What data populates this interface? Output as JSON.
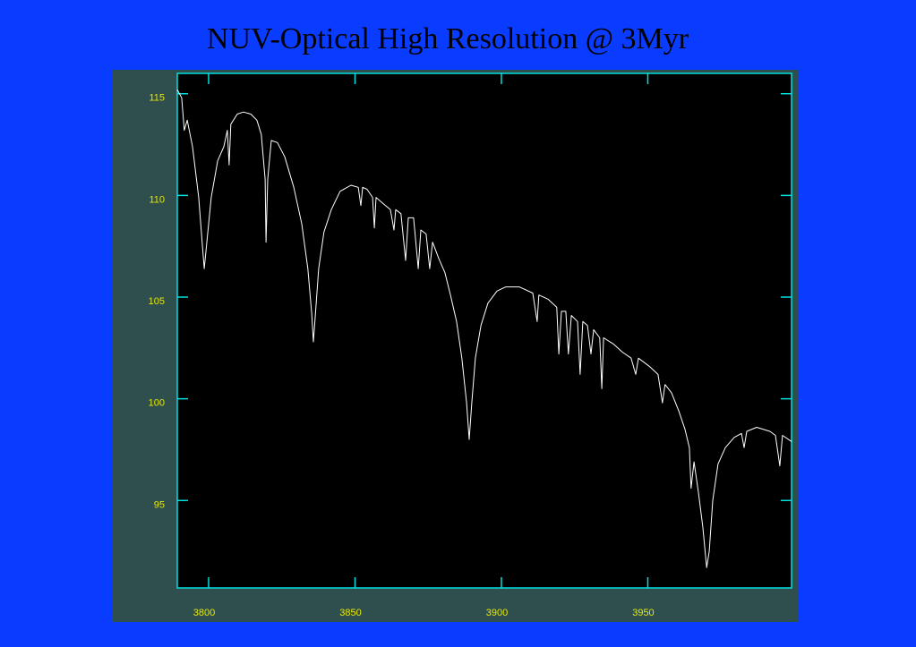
{
  "chart_data": {
    "type": "line",
    "title": "NUV-Optical High Resolution @ 3Myr",
    "x": [
      3789.3,
      3790.8,
      3791.7,
      3792.7,
      3794.5,
      3796.6,
      3797.9,
      3798.5,
      3799.4,
      3800.9,
      3803.1,
      3805.2,
      3806.4,
      3807.0,
      3807.6,
      3809.8,
      3811.9,
      3814.4,
      3816.5,
      3818.0,
      3819.3,
      3819.6,
      3820.2,
      3821.4,
      3823.5,
      3826.0,
      3829.1,
      3831.8,
      3833.9,
      3835.2,
      3835.8,
      3836.4,
      3837.6,
      3839.4,
      3841.9,
      3844.9,
      3848.6,
      3851.1,
      3852.0,
      3852.6,
      3854.1,
      3856.0,
      3856.6,
      3857.2,
      3859.6,
      3862.1,
      3863.3,
      3863.9,
      3865.7,
      3867.3,
      3868.2,
      3870.0,
      3871.6,
      3872.5,
      3874.3,
      3875.5,
      3876.5,
      3878.6,
      3880.7,
      3882.6,
      3884.7,
      3886.5,
      3888.1,
      3889.0,
      3889.9,
      3891.1,
      3893.0,
      3895.4,
      3898.5,
      3901.5,
      3906.1,
      3910.7,
      3912.2,
      3912.8,
      3915.9,
      3918.9,
      3919.6,
      3920.5,
      3922.0,
      3922.9,
      3923.9,
      3926.0,
      3926.9,
      3927.8,
      3929.4,
      3930.6,
      3931.5,
      3933.6,
      3934.3,
      3934.9,
      3938.2,
      3941.3,
      3944.3,
      3945.9,
      3946.8,
      3950.5,
      3953.5,
      3955.0,
      3955.9,
      3958.1,
      3960.6,
      3962.7,
      3964.2,
      3964.8,
      3965.8,
      3967.3,
      3968.8,
      3970.1,
      3971.0,
      3972.2,
      3974.0,
      3976.5,
      3979.5,
      3982.0,
      3982.9,
      3983.8,
      3987.2,
      3991.7,
      3993.6,
      3995.1,
      3996.0,
      3999.1
    ],
    "values": [
      115.2,
      114.8,
      113.2,
      113.7,
      112.4,
      109.9,
      107.5,
      106.4,
      107.7,
      109.9,
      111.7,
      112.4,
      113.2,
      111.5,
      113.5,
      114.0,
      114.1,
      114.0,
      113.7,
      113.0,
      110.8,
      107.7,
      110.8,
      112.7,
      112.6,
      111.9,
      110.4,
      108.6,
      106.4,
      104.2,
      102.8,
      104.0,
      106.4,
      108.2,
      109.3,
      110.2,
      110.5,
      110.4,
      109.5,
      110.4,
      110.3,
      109.9,
      108.4,
      109.9,
      109.6,
      109.3,
      108.3,
      109.3,
      109.1,
      106.8,
      108.9,
      108.9,
      106.4,
      108.3,
      108.1,
      106.4,
      107.7,
      106.9,
      106.2,
      105.1,
      103.8,
      102.0,
      99.8,
      98.0,
      99.8,
      102.0,
      103.6,
      104.7,
      105.3,
      105.5,
      105.5,
      105.2,
      103.8,
      105.1,
      104.9,
      104.5,
      102.2,
      104.3,
      104.3,
      102.2,
      104.1,
      103.8,
      101.2,
      103.8,
      103.6,
      102.2,
      103.4,
      103.0,
      100.5,
      103.0,
      102.7,
      102.3,
      102.0,
      101.2,
      102.0,
      101.6,
      101.2,
      99.8,
      100.7,
      100.3,
      99.4,
      98.5,
      97.6,
      95.6,
      96.9,
      95.4,
      93.7,
      91.7,
      92.5,
      95.0,
      96.8,
      97.6,
      98.1,
      98.3,
      97.6,
      98.4,
      98.6,
      98.4,
      98.2,
      96.7,
      98.2,
      97.9
    ],
    "color": "#ffffff",
    "xlim": [
      3789.3,
      3999.1
    ],
    "xticks": [
      3800,
      3850,
      3900,
      3950
    ],
    "ylim": [
      90.7,
      116
    ],
    "yticks": [
      95,
      100,
      105,
      110,
      115
    ]
  }
}
